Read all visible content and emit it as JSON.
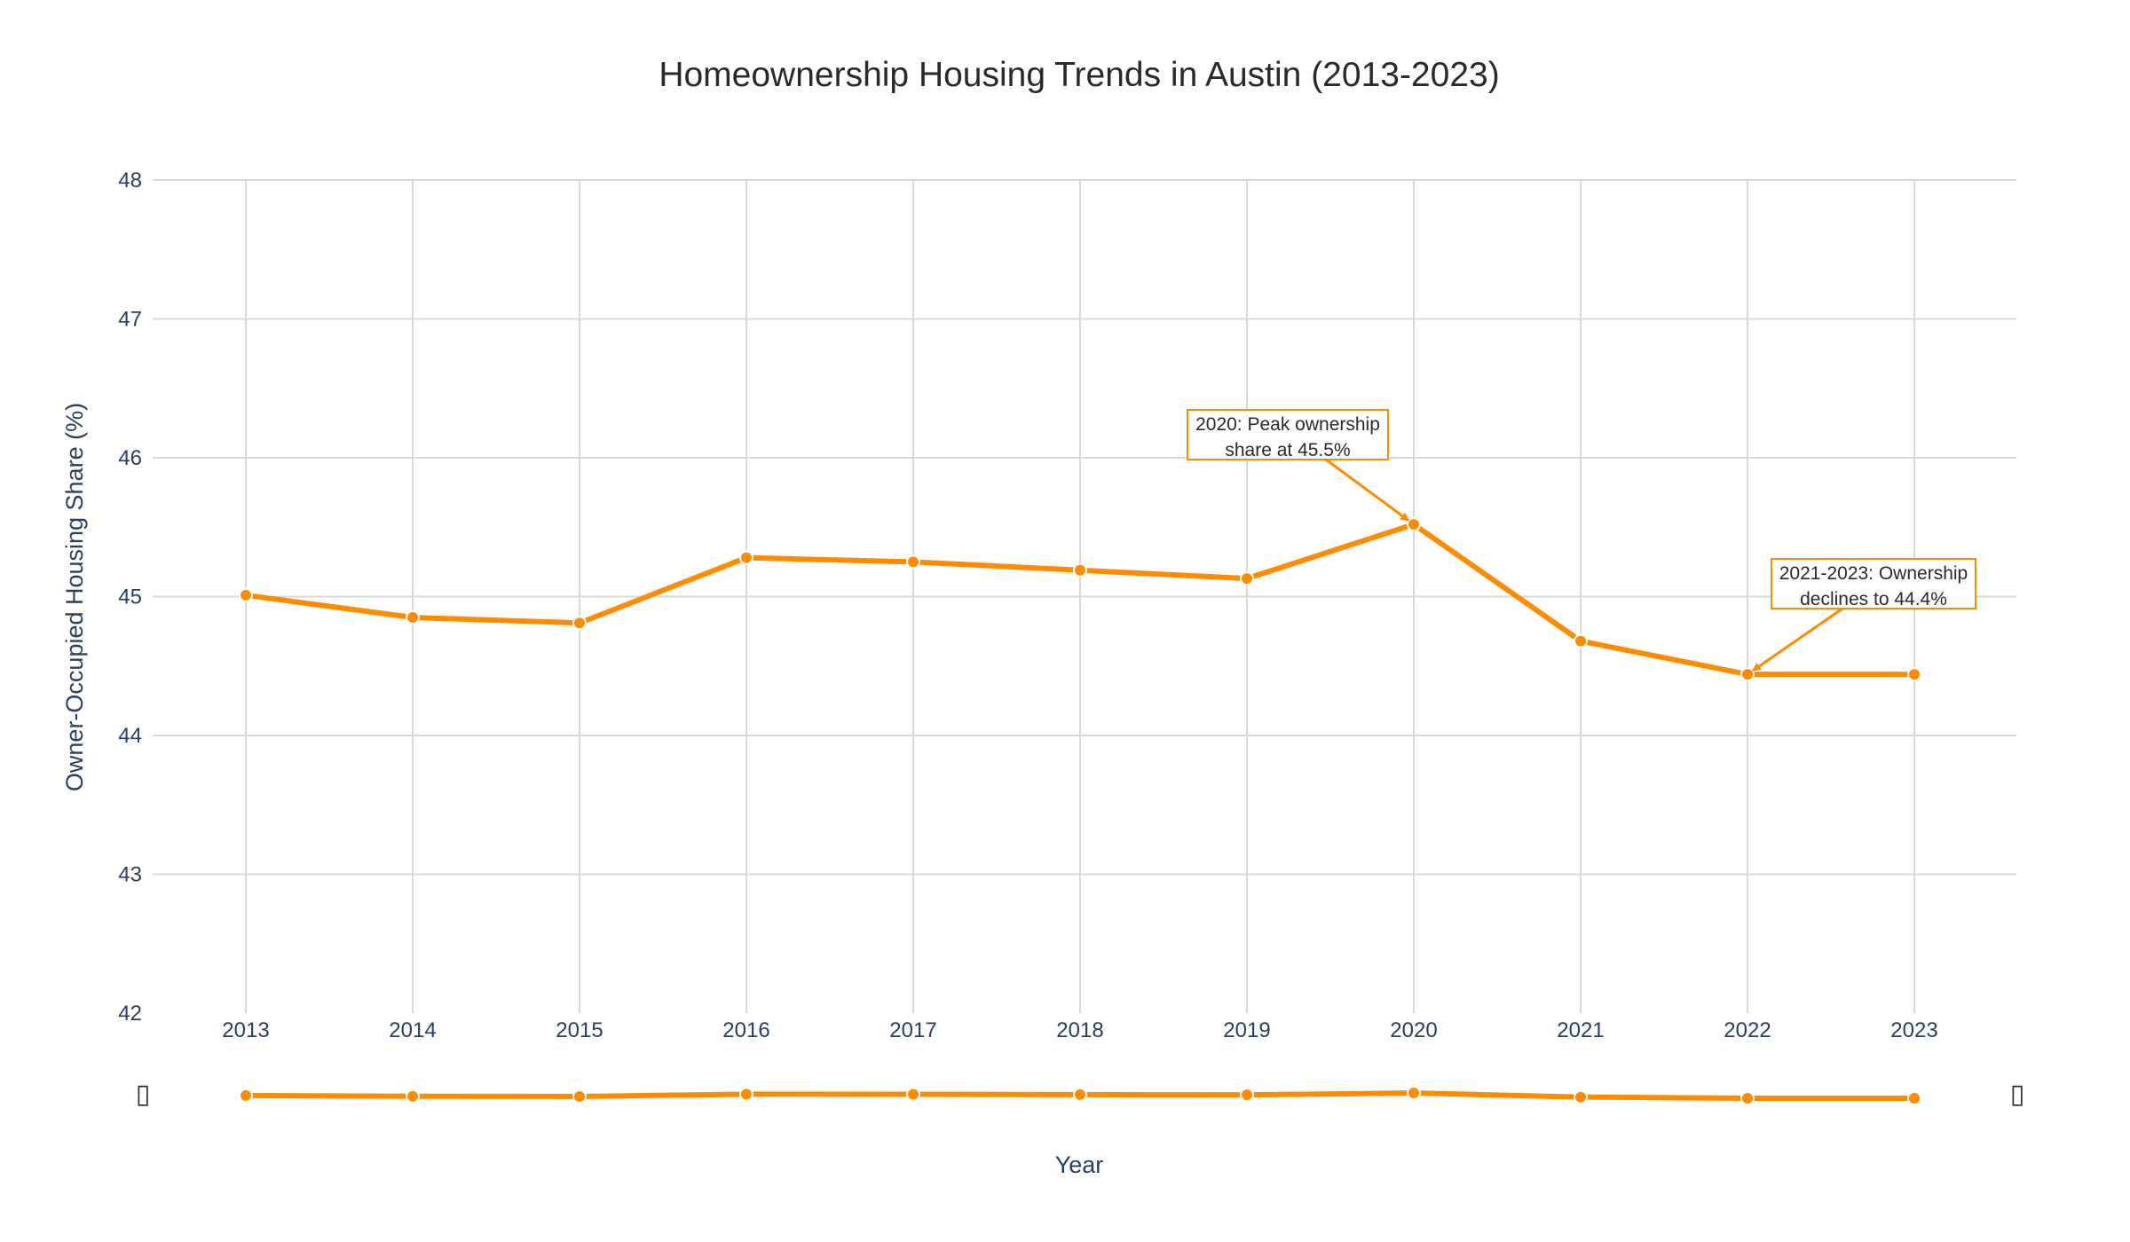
{
  "chart_data": {
    "type": "line",
    "title": "Homeownership Housing Trends in Austin (2013-2023)",
    "xlabel": "Year",
    "ylabel": "Owner-Occupied Housing Share (%)",
    "x": [
      "2013",
      "2014",
      "2015",
      "2016",
      "2017",
      "2018",
      "2019",
      "2020",
      "2021",
      "2022",
      "2023"
    ],
    "series": [
      {
        "values": [
          45.01,
          44.85,
          44.81,
          45.28,
          45.25,
          45.19,
          45.13,
          45.52,
          44.68,
          44.44,
          44.44
        ]
      }
    ],
    "ylim": [
      42,
      48
    ],
    "yticks": [
      "48",
      "47",
      "46",
      "45",
      "44",
      "43",
      "42"
    ],
    "grid": true,
    "line_color": "#ff8c00",
    "range_slider": true,
    "range_slider_handles": [
      "▯",
      "▯"
    ],
    "annotations": [
      {
        "lines": [
          "2020: Peak ownership",
          "share at 45.5%"
        ],
        "x": "2020",
        "y": 45.52
      },
      {
        "lines": [
          "2021-2023: Ownership",
          "declines to 44.4%"
        ],
        "x": "2022",
        "y": 44.44
      }
    ]
  }
}
